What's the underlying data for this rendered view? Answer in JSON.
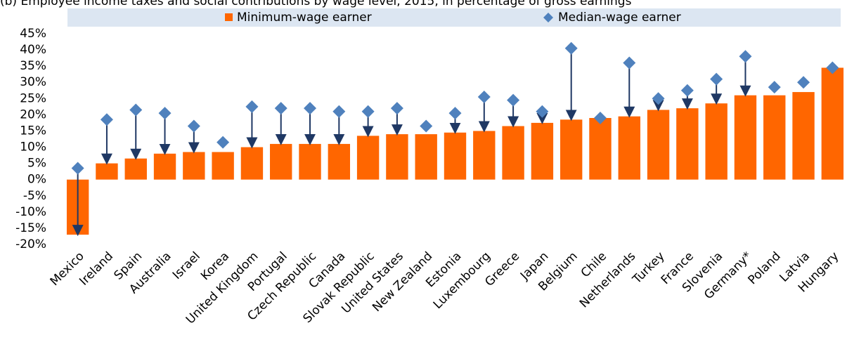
{
  "chart_data": {
    "type": "bar",
    "title": "(b) Employee income taxes and social contributions by wage level, 2015, in percentage of gross earnings",
    "categories": [
      "Mexico",
      "Ireland",
      "Spain",
      "Australia",
      "Israel",
      "Korea",
      "United Kingdom",
      "Portugal",
      "Czech Republic",
      "Canada",
      "Slovak Republic",
      "United States",
      "New Zealand",
      "Estonia",
      "Luxembourg",
      "Greece",
      "Japan",
      "Belgium",
      "Chile",
      "Netherlands",
      "Turkey",
      "France",
      "Slovenia",
      "Germany*",
      "Poland",
      "Latvia",
      "Hungary"
    ],
    "series": [
      {
        "name": "Minimum-wage earner",
        "color": "#ff6600",
        "values": [
          -17,
          5,
          6.5,
          8,
          8.5,
          8.5,
          10,
          11,
          11,
          11,
          13.5,
          14,
          14,
          14.5,
          15,
          16.5,
          17.5,
          18.5,
          19,
          19.5,
          21.5,
          22,
          23.5,
          26,
          26,
          27,
          34.5
        ]
      },
      {
        "name": "Median-wage earner",
        "color": "#4f81bd",
        "values": [
          3.5,
          18.5,
          21.5,
          20.5,
          16.5,
          11.5,
          22.5,
          22,
          22,
          21,
          21,
          22,
          16.5,
          20.5,
          25.5,
          24.5,
          21,
          40.5,
          19,
          36,
          25,
          27.5,
          31,
          38,
          28.5,
          30,
          34.5
        ]
      }
    ],
    "ylim": [
      -20,
      45
    ],
    "yticks": [
      {
        "value": -20,
        "label": "-20%"
      },
      {
        "value": -15,
        "label": "-15%"
      },
      {
        "value": -10,
        "label": "-10%"
      },
      {
        "value": -5,
        "label": "-5%"
      },
      {
        "value": 0,
        "label": "0%"
      },
      {
        "value": 5,
        "label": "5%"
      },
      {
        "value": 10,
        "label": "10%"
      },
      {
        "value": 15,
        "label": "15%"
      },
      {
        "value": 20,
        "label": "20%"
      },
      {
        "value": 25,
        "label": "25%"
      },
      {
        "value": 30,
        "label": "30%"
      },
      {
        "value": 35,
        "label": "35%"
      },
      {
        "value": 40,
        "label": "40%"
      },
      {
        "value": 45,
        "label": "45%"
      }
    ]
  }
}
